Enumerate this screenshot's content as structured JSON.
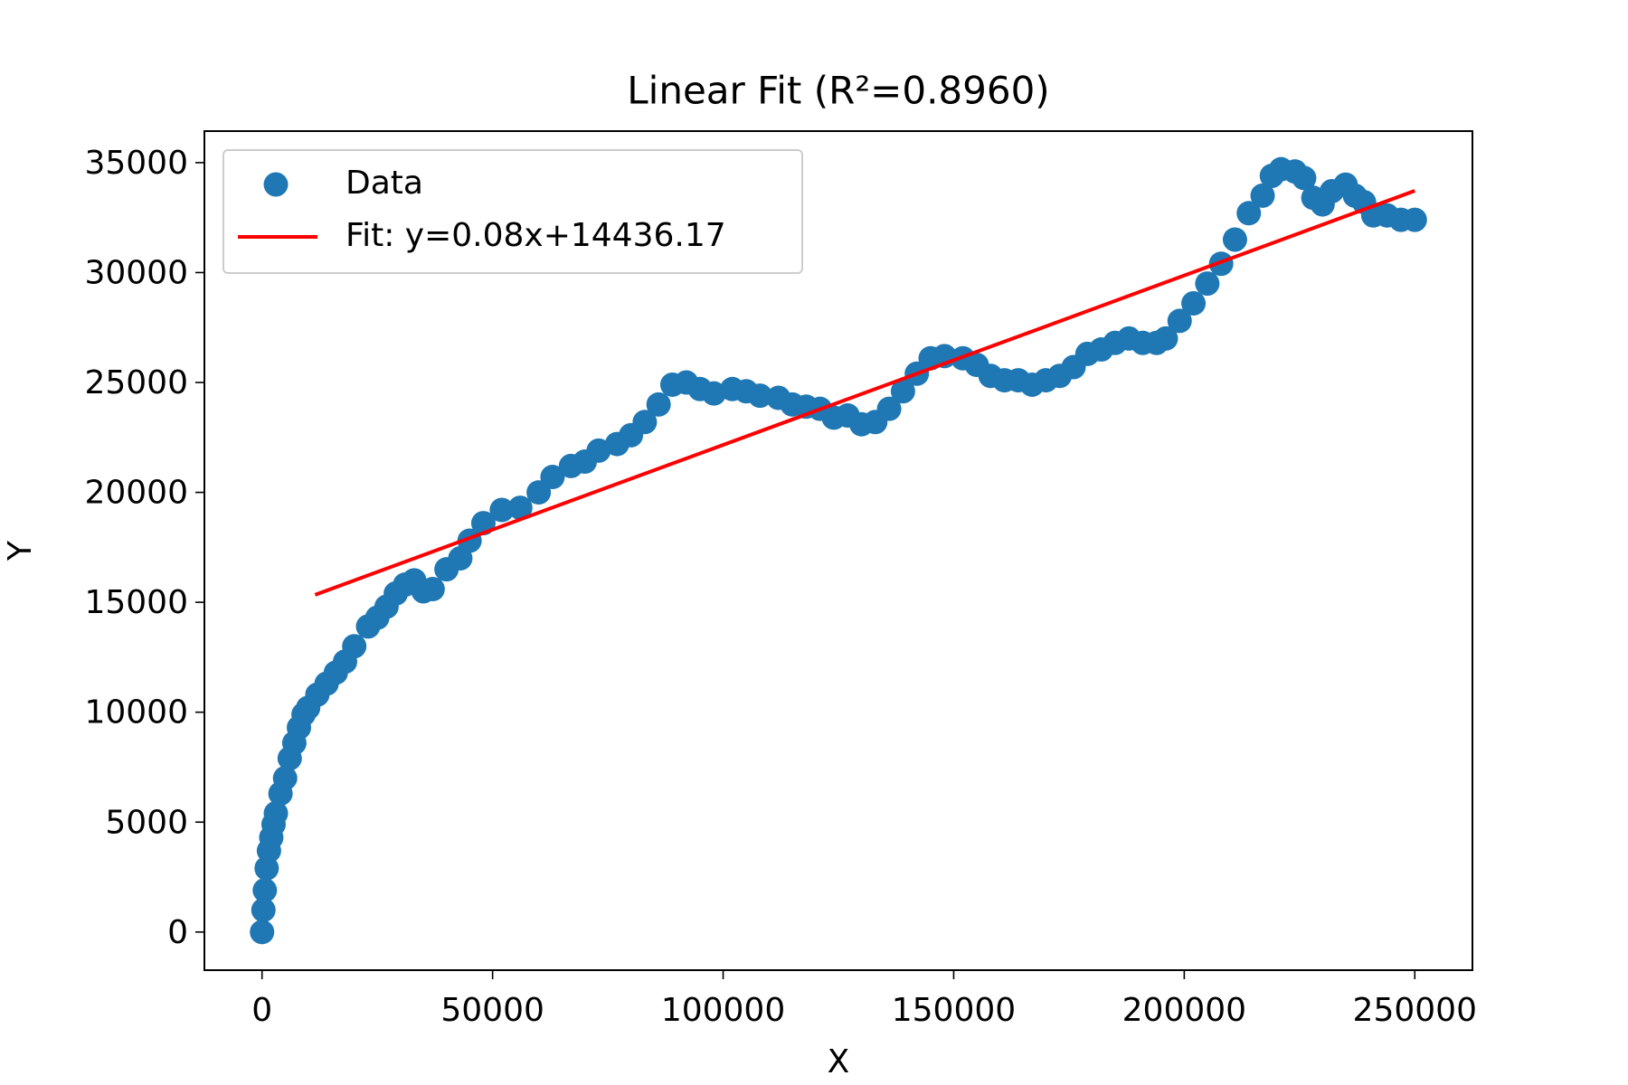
{
  "chart_data": {
    "type": "scatter",
    "title": "Linear Fit (R²=0.8960)",
    "x_label": "X",
    "y_label": "Y",
    "xlim": [
      -12500,
      262500
    ],
    "ylim": [
      -1735,
      36435
    ],
    "xticks": [
      0,
      50000,
      100000,
      150000,
      200000,
      250000
    ],
    "yticks": [
      0,
      5000,
      10000,
      15000,
      20000,
      25000,
      30000,
      35000
    ],
    "grid": false,
    "legend": "upper left",
    "series": [
      {
        "name": "Data",
        "color": "#1f77b4",
        "type": "scatter",
        "x": [
          0,
          300,
          600,
          1000,
          1500,
          2000,
          2500,
          3000,
          4000,
          5000,
          6000,
          7000,
          8000,
          9000,
          10000,
          12000,
          14000,
          16000,
          18000,
          20000,
          23000,
          25000,
          27000,
          29000,
          31000,
          33000,
          35000,
          37000,
          40000,
          43000,
          45000,
          48000,
          52000,
          56000,
          60000,
          63000,
          67000,
          70000,
          73000,
          77000,
          80000,
          83000,
          86000,
          89000,
          92000,
          95000,
          98000,
          102000,
          105000,
          108000,
          112000,
          115000,
          118000,
          121000,
          124000,
          127000,
          130000,
          133000,
          136000,
          139000,
          142000,
          145000,
          148000,
          152000,
          155000,
          158000,
          161000,
          164000,
          167000,
          170000,
          173000,
          176000,
          179000,
          182000,
          185000,
          188000,
          191000,
          194000,
          196000,
          199000,
          202000,
          205000,
          208000,
          211000,
          214000,
          217000,
          219000,
          221000,
          224000,
          226000,
          228000,
          230000,
          232000,
          235000,
          237000,
          239000,
          241000,
          244000,
          247000,
          250000
        ],
        "values": [
          0,
          1000,
          1900,
          2900,
          3700,
          4300,
          4900,
          5400,
          6300,
          7000,
          7900,
          8600,
          9300,
          9900,
          10200,
          10800,
          11300,
          11800,
          12300,
          13000,
          13900,
          14300,
          14800,
          15400,
          15800,
          16000,
          15500,
          15600,
          16500,
          17000,
          17800,
          18600,
          19200,
          19300,
          20000,
          20700,
          21200,
          21400,
          21900,
          22200,
          22600,
          23200,
          24000,
          24900,
          25000,
          24700,
          24500,
          24700,
          24600,
          24400,
          24300,
          24000,
          23900,
          23800,
          23400,
          23500,
          23100,
          23200,
          23800,
          24600,
          25400,
          26100,
          26200,
          26100,
          25800,
          25300,
          25100,
          25100,
          24900,
          25100,
          25300,
          25700,
          26300,
          26500,
          26800,
          27000,
          26800,
          26800,
          27000,
          27800,
          28600,
          29500,
          30400,
          31500,
          32700,
          33500,
          34400,
          34700,
          34600,
          34300,
          33400,
          33100,
          33700,
          34000,
          33500,
          33200,
          32600,
          32600,
          32400,
          32400
        ]
      },
      {
        "name": "Fit: y=0.08x+14436.17",
        "color": "#ff0000",
        "type": "line",
        "x": [
          11500,
          250000
        ],
        "values": [
          15340,
          33720
        ]
      }
    ]
  }
}
